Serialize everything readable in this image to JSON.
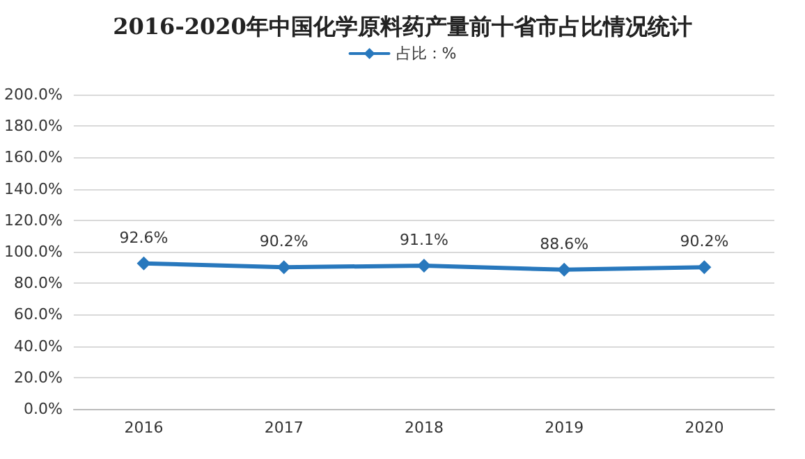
{
  "chart_data": {
    "type": "line",
    "title": "2016-2020年中国化学原料药产量前十省市占比情况统计",
    "categories": [
      "2016",
      "2017",
      "2018",
      "2019",
      "2020"
    ],
    "series": [
      {
        "name": "占比：%",
        "color": "#2878bd",
        "values": [
          92.6,
          90.2,
          91.1,
          88.6,
          90.2
        ],
        "value_labels": [
          "92.6%",
          "90.2%",
          "91.1%",
          "88.6%",
          "90.2%"
        ]
      }
    ],
    "ylim": [
      0,
      200
    ],
    "yticks": [
      {
        "value": 0,
        "label": "0.0%"
      },
      {
        "value": 20,
        "label": "20.0%"
      },
      {
        "value": 40,
        "label": "40.0%"
      },
      {
        "value": 60,
        "label": "60.0%"
      },
      {
        "value": 80,
        "label": "80.0%"
      },
      {
        "value": 100,
        "label": "100.0%"
      },
      {
        "value": 120,
        "label": "120.0%"
      },
      {
        "value": 140,
        "label": "140.0%"
      },
      {
        "value": 160,
        "label": "160.0%"
      },
      {
        "value": 180,
        "label": "180.0%"
      },
      {
        "value": 200,
        "label": "200.0%"
      }
    ],
    "grid": "y",
    "legend": "top",
    "marker": "diamond",
    "line_style": "solid"
  }
}
